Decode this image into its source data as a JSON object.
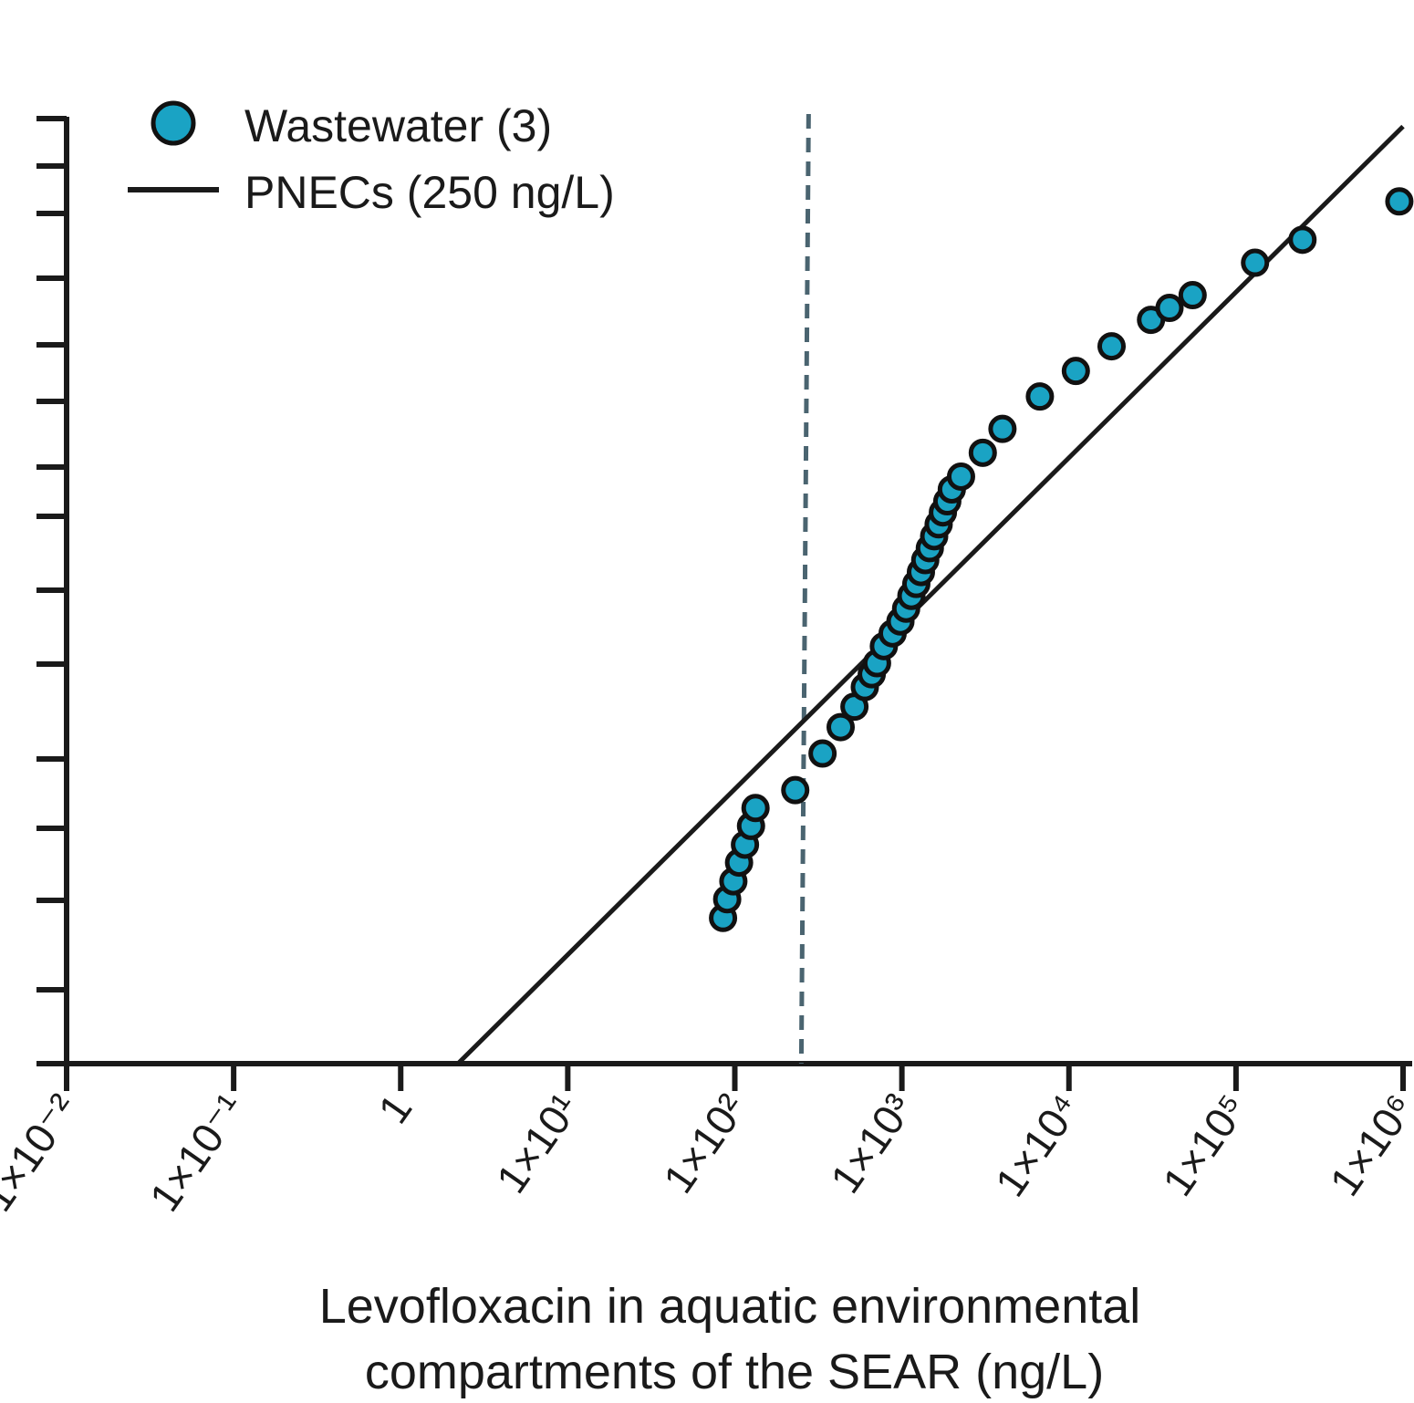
{
  "chart_data": {
    "type": "scatter",
    "title": "",
    "xlabel": [
      "Levofloxacin in aquatic environmental",
      "compartments of the SEAR (ng/L)"
    ],
    "ylabel": "",
    "x_scale": "log",
    "xlim": [
      0.01,
      1000000
    ],
    "x_ticks": [
      {
        "value": 0.01,
        "label": "1×10⁻²"
      },
      {
        "value": 0.1,
        "label": "1×10⁻¹"
      },
      {
        "value": 1,
        "label": "1"
      },
      {
        "value": 10,
        "label": "1×10¹"
      },
      {
        "value": 100,
        "label": "1×10²"
      },
      {
        "value": 1000,
        "label": "1×10³"
      },
      {
        "value": 10000,
        "label": "1×10⁴"
      },
      {
        "value": 100000,
        "label": "1×10⁵"
      },
      {
        "value": 1000000,
        "label": "1×10⁶"
      }
    ],
    "y_ticks_count": 14,
    "y_tick_labels_shown": false,
    "ylim": [
      0,
      1
    ],
    "legend_placement": "top-left",
    "series": [
      {
        "name": "Wastewater (3)",
        "kind": "points",
        "color": "#1aa3c4",
        "points": [
          {
            "x": 85,
            "y": 0.171
          },
          {
            "x": 90,
            "y": 0.193
          },
          {
            "x": 98,
            "y": 0.214
          },
          {
            "x": 106,
            "y": 0.236
          },
          {
            "x": 115,
            "y": 0.257
          },
          {
            "x": 125,
            "y": 0.279
          },
          {
            "x": 133,
            "y": 0.3
          },
          {
            "x": 230,
            "y": 0.321
          },
          {
            "x": 335,
            "y": 0.364
          },
          {
            "x": 430,
            "y": 0.395
          },
          {
            "x": 520,
            "y": 0.419
          },
          {
            "x": 600,
            "y": 0.442
          },
          {
            "x": 660,
            "y": 0.457
          },
          {
            "x": 710,
            "y": 0.47
          },
          {
            "x": 780,
            "y": 0.49
          },
          {
            "x": 880,
            "y": 0.505
          },
          {
            "x": 980,
            "y": 0.519
          },
          {
            "x": 1060,
            "y": 0.534
          },
          {
            "x": 1140,
            "y": 0.549
          },
          {
            "x": 1220,
            "y": 0.563
          },
          {
            "x": 1300,
            "y": 0.577
          },
          {
            "x": 1380,
            "y": 0.591
          },
          {
            "x": 1470,
            "y": 0.605
          },
          {
            "x": 1560,
            "y": 0.619
          },
          {
            "x": 1660,
            "y": 0.633
          },
          {
            "x": 1760,
            "y": 0.647
          },
          {
            "x": 1870,
            "y": 0.66
          },
          {
            "x": 1990,
            "y": 0.674
          },
          {
            "x": 2260,
            "y": 0.689
          },
          {
            "x": 3050,
            "y": 0.717
          },
          {
            "x": 4000,
            "y": 0.745
          },
          {
            "x": 6700,
            "y": 0.783
          },
          {
            "x": 11000,
            "y": 0.813
          },
          {
            "x": 18000,
            "y": 0.842
          },
          {
            "x": 31000,
            "y": 0.873
          },
          {
            "x": 40000,
            "y": 0.887
          },
          {
            "x": 55000,
            "y": 0.902
          },
          {
            "x": 130000,
            "y": 0.94
          },
          {
            "x": 250000,
            "y": 0.967
          },
          {
            "x": 950000,
            "y": 1.012
          }
        ]
      },
      {
        "name": "PNECs (250 ng/L)",
        "kind": "line",
        "color": "#1a1a1a",
        "points": [
          {
            "x": 2.2,
            "y": 0.0
          },
          {
            "x": 1000000,
            "y": 1.1
          }
        ]
      }
    ],
    "reference_line": {
      "x": 250,
      "style": "dashed",
      "color": "#4a6470"
    }
  }
}
